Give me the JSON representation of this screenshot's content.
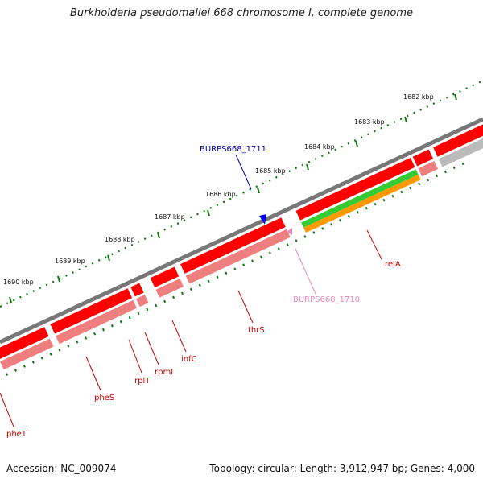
{
  "title": "Burkholderia pseudomallei 668 chromosome I, complete genome",
  "accession": "Accession: NC_009074",
  "stats": "Topology: circular; Length: 3,912,947 bp; Genes: 4,000",
  "colors": {
    "backbone": "#777777",
    "gene_primary": "#ff0000",
    "gene_secondary": "#ef7f7f",
    "gene_green": "#33cc33",
    "gene_orange": "#ff9900",
    "gene_gray": "#bbbbbb",
    "tick": "#117711",
    "label_red": "#cc0000",
    "label_blue": "#0000aa",
    "label_pink": "#ee88bb"
  },
  "scale_labels": [
    "1682 kbp",
    "1683 kbp",
    "1684 kbp",
    "1685 kbp",
    "1686 kbp",
    "1687 kbp",
    "1688 kbp",
    "1689 kbp",
    "1690 kbp"
  ],
  "gene_labels": [
    "pheT",
    "pheS",
    "rplT",
    "rpmI",
    "infC",
    "thrS",
    "relA",
    "BURPS668_1710",
    "BURPS668_1711"
  ]
}
